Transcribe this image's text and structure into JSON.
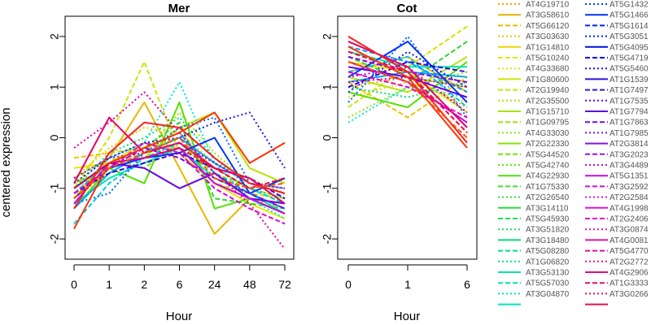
{
  "chart_data": [
    {
      "type": "line",
      "title": "Mer",
      "xlabel": "Hour",
      "ylabel": "centered expression",
      "categories": [
        "0",
        "1",
        "2",
        "6",
        "24",
        "48",
        "72"
      ],
      "ylim": [
        -2.4,
        2.4
      ],
      "yticks": [
        "-2",
        "-1",
        "0",
        "1",
        "2"
      ],
      "grid": false,
      "series": [
        {
          "color": "#E6A800",
          "dash": "dot",
          "values": [
            -1.0,
            -0.5,
            -0.3,
            -0.2,
            -0.9,
            -1.2,
            -1.4
          ]
        },
        {
          "color": "#E6B800",
          "dash": "solid",
          "values": [
            -1.2,
            -0.4,
            0.7,
            -0.6,
            -1.9,
            -1.2,
            -1.5
          ]
        },
        {
          "color": "#EBC300",
          "dash": "dash",
          "values": [
            -0.4,
            -0.3,
            -0.2,
            0.0,
            -0.6,
            -1.0,
            -1.2
          ]
        },
        {
          "color": "#F0D000",
          "dash": "dot",
          "values": [
            -0.8,
            -0.2,
            0.2,
            0.1,
            -0.5,
            -0.8,
            -1.1
          ]
        },
        {
          "color": "#E6E600",
          "dash": "solid",
          "values": [
            -0.6,
            -0.5,
            -0.1,
            -0.3,
            -0.9,
            -1.3,
            -1.6
          ]
        },
        {
          "color": "#CCE600",
          "dash": "dash",
          "values": [
            -1.0,
            0.0,
            1.5,
            -0.3,
            -0.9,
            -1.1,
            -1.2
          ]
        },
        {
          "color": "#B3E600",
          "dash": "solid",
          "values": [
            -0.9,
            -0.6,
            -0.4,
            0.2,
            0.5,
            -0.6,
            -0.9
          ]
        },
        {
          "color": "#99E600",
          "dash": "dot",
          "values": [
            -1.2,
            -0.7,
            -0.3,
            0.5,
            -0.3,
            -0.9,
            -1.0
          ]
        },
        {
          "color": "#80E600",
          "dash": "dash",
          "values": [
            -0.8,
            -0.4,
            -0.6,
            -0.1,
            -0.7,
            -1.0,
            -1.3
          ]
        },
        {
          "color": "#55E000",
          "dash": "solid",
          "values": [
            -1.4,
            -0.6,
            -0.9,
            0.7,
            -1.4,
            -1.2,
            -1.5
          ]
        },
        {
          "color": "#2ED62E",
          "dash": "dash",
          "values": [
            -1.1,
            -0.5,
            -0.2,
            0.3,
            -1.2,
            -1.3,
            -1.4
          ]
        },
        {
          "color": "#00E070",
          "dash": "dot",
          "values": [
            -1.0,
            -0.3,
            0.0,
            0.4,
            -0.4,
            -1.0,
            -1.2
          ]
        },
        {
          "color": "#00E6AA",
          "dash": "solid",
          "values": [
            -1.3,
            -0.8,
            -0.5,
            -0.2,
            -0.8,
            -1.1,
            -1.5
          ]
        },
        {
          "color": "#00E6E6",
          "dash": "dot",
          "values": [
            -1.1,
            -0.4,
            -0.1,
            1.1,
            -0.5,
            -1.2,
            -1.6
          ]
        },
        {
          "color": "#00C8E6",
          "dash": "dash",
          "values": [
            -1.7,
            -0.9,
            -0.4,
            -0.1,
            -0.6,
            -1.0,
            -1.3
          ]
        },
        {
          "color": "#00AAF0",
          "dash": "solid",
          "values": [
            -1.4,
            -0.7,
            -0.3,
            0.0,
            -0.5,
            -0.9,
            -1.1
          ]
        },
        {
          "color": "#0099FF",
          "dash": "dash",
          "values": [
            -1.0,
            -0.5,
            -0.2,
            0.1,
            -0.7,
            -1.1,
            -1.4
          ]
        },
        {
          "color": "#0066FF",
          "dash": "dot",
          "values": [
            -1.3,
            -1.1,
            -0.3,
            0.2,
            0.4,
            -0.9,
            -1.0
          ]
        },
        {
          "color": "#0033FF",
          "dash": "solid",
          "values": [
            -1.2,
            -0.6,
            -0.4,
            -0.3,
            0.0,
            -1.1,
            -0.8
          ]
        },
        {
          "color": "#1A1AE6",
          "dash": "dot",
          "values": [
            -0.9,
            -0.4,
            -0.1,
            0.0,
            0.3,
            0.5,
            -0.6
          ]
        },
        {
          "color": "#3300E6",
          "dash": "dash",
          "values": [
            -1.1,
            -0.7,
            -0.5,
            -0.3,
            -0.6,
            -0.8,
            -1.2
          ]
        },
        {
          "color": "#6600E6",
          "dash": "solid",
          "values": [
            -1.0,
            -0.5,
            -0.6,
            -1.0,
            -0.7,
            -1.2,
            -1.3
          ]
        },
        {
          "color": "#8800DD",
          "dash": "dash",
          "values": [
            -1.2,
            -0.6,
            -0.2,
            -0.4,
            -0.8,
            -1.1,
            -1.4
          ]
        },
        {
          "color": "#AA00E6",
          "dash": "dot",
          "values": [
            -0.8,
            -0.4,
            -0.3,
            -0.1,
            -0.5,
            -0.9,
            -1.0
          ]
        },
        {
          "color": "#CC00E6",
          "dash": "solid",
          "values": [
            -1.3,
            -0.5,
            -0.4,
            -0.2,
            -0.9,
            -1.2,
            -1.5
          ]
        },
        {
          "color": "#E600CC",
          "dash": "dash",
          "values": [
            -1.1,
            -0.6,
            -0.1,
            -0.3,
            -1.0,
            -1.4,
            -1.7
          ]
        },
        {
          "color": "#E60099",
          "dash": "dot",
          "values": [
            -0.2,
            0.3,
            0.9,
            0.1,
            -0.7,
            -1.3,
            -2.2
          ]
        },
        {
          "color": "#E60066",
          "dash": "solid",
          "values": [
            -0.9,
            0.4,
            -0.3,
            -0.1,
            -0.6,
            -0.8,
            -1.3
          ]
        },
        {
          "color": "#F00040",
          "dash": "dash",
          "values": [
            -1.0,
            -0.5,
            -0.4,
            -0.2,
            -0.6,
            -1.0,
            -0.8
          ]
        },
        {
          "color": "#FF2020",
          "dash": "solid",
          "values": [
            -1.4,
            -0.3,
            0.3,
            0.2,
            -0.4,
            -0.9,
            -1.1
          ]
        },
        {
          "color": "#FF3300",
          "dash": "solid",
          "values": [
            -1.8,
            -0.5,
            -0.2,
            0.1,
            0.5,
            -0.5,
            -0.1
          ]
        },
        {
          "color": "#FF5500",
          "dash": "dash",
          "values": [
            -1.2,
            -0.6,
            -0.3,
            0.0,
            -0.8,
            -1.0,
            -0.9
          ]
        }
      ]
    },
    {
      "type": "line",
      "title": "Cot",
      "xlabel": "Hour",
      "categories": [
        "0",
        "1",
        "6"
      ],
      "ylim": [
        -2.4,
        2.4
      ],
      "yticks": [
        "-2",
        "-1",
        "0",
        "1",
        "2"
      ],
      "grid": false,
      "series": [
        {
          "color": "#E6A800",
          "dash": "dot",
          "values": [
            1.0,
            1.2,
            0.6
          ]
        },
        {
          "color": "#E6B800",
          "dash": "solid",
          "values": [
            1.3,
            1.6,
            0.9
          ]
        },
        {
          "color": "#EBC300",
          "dash": "dash",
          "values": [
            1.1,
            0.4,
            1.2
          ]
        },
        {
          "color": "#F0D000",
          "dash": "dot",
          "values": [
            0.8,
            1.1,
            0.7
          ]
        },
        {
          "color": "#E6E600",
          "dash": "solid",
          "values": [
            1.5,
            1.3,
            0.5
          ]
        },
        {
          "color": "#CCE600",
          "dash": "dash",
          "values": [
            0.6,
            1.4,
            2.2
          ]
        },
        {
          "color": "#B3E600",
          "dash": "solid",
          "values": [
            1.2,
            0.9,
            1.6
          ]
        },
        {
          "color": "#99E600",
          "dash": "dot",
          "values": [
            0.4,
            1.0,
            1.3
          ]
        },
        {
          "color": "#80E600",
          "dash": "dash",
          "values": [
            1.4,
            1.2,
            1.0
          ]
        },
        {
          "color": "#55E000",
          "dash": "solid",
          "values": [
            0.9,
            0.6,
            1.5
          ]
        },
        {
          "color": "#2ED62E",
          "dash": "dash",
          "values": [
            1.6,
            1.1,
            1.9
          ]
        },
        {
          "color": "#00E070",
          "dash": "dot",
          "values": [
            1.0,
            0.8,
            1.1
          ]
        },
        {
          "color": "#00E6AA",
          "dash": "solid",
          "values": [
            1.7,
            1.4,
            1.4
          ]
        },
        {
          "color": "#00E6E6",
          "dash": "dot",
          "values": [
            0.3,
            1.0,
            0.8
          ]
        },
        {
          "color": "#00C8E6",
          "dash": "dash",
          "values": [
            1.3,
            1.6,
            0.6
          ]
        },
        {
          "color": "#00AAF0",
          "dash": "solid",
          "values": [
            1.1,
            1.3,
            1.2
          ]
        },
        {
          "color": "#0099FF",
          "dash": "dash",
          "values": [
            1.8,
            1.5,
            0.9
          ]
        },
        {
          "color": "#0066FF",
          "dash": "dot",
          "values": [
            0.7,
            2.0,
            0.4
          ]
        },
        {
          "color": "#0033FF",
          "dash": "solid",
          "values": [
            1.2,
            1.9,
            0.7
          ]
        },
        {
          "color": "#1A1AE6",
          "dash": "dot",
          "values": [
            0.9,
            1.7,
            1.0
          ]
        },
        {
          "color": "#3300E6",
          "dash": "dash",
          "values": [
            1.0,
            1.5,
            1.3
          ]
        },
        {
          "color": "#6600E6",
          "dash": "solid",
          "values": [
            1.4,
            1.2,
            0.8
          ]
        },
        {
          "color": "#8800DD",
          "dash": "dash",
          "values": [
            1.6,
            1.3,
            1.1
          ]
        },
        {
          "color": "#AA00E6",
          "dash": "dot",
          "values": [
            1.2,
            1.4,
            0.5
          ]
        },
        {
          "color": "#CC00E6",
          "dash": "solid",
          "values": [
            1.5,
            1.1,
            0.3
          ]
        },
        {
          "color": "#E600CC",
          "dash": "dash",
          "values": [
            1.3,
            1.0,
            0.4
          ]
        },
        {
          "color": "#E60099",
          "dash": "dot",
          "values": [
            1.1,
            1.2,
            1.0
          ]
        },
        {
          "color": "#E60066",
          "dash": "solid",
          "values": [
            1.9,
            1.4,
            0.2
          ]
        },
        {
          "color": "#F00040",
          "dash": "dash",
          "values": [
            1.7,
            1.3,
            0.1
          ]
        },
        {
          "color": "#FF2020",
          "dash": "solid",
          "values": [
            2.0,
            1.3,
            -0.1
          ]
        },
        {
          "color": "#FF3300",
          "dash": "solid",
          "values": [
            1.8,
            1.2,
            -0.2
          ]
        },
        {
          "color": "#FF5500",
          "dash": "dash",
          "values": [
            1.5,
            1.1,
            0.0
          ]
        }
      ]
    }
  ],
  "legend": {
    "placement": "right",
    "columns": [
      [
        {
          "label": "AT4G19710",
          "color": "#E6A800",
          "dash": "dot"
        },
        {
          "label": "AT3G58610",
          "color": "#E6B000",
          "dash": "solid"
        },
        {
          "label": "AT5G66120",
          "color": "#E6B800",
          "dash": "dash"
        },
        {
          "label": "AT3G03630",
          "color": "#EBC300",
          "dash": "dot"
        },
        {
          "label": "AT1G14810",
          "color": "#F0D000",
          "dash": "solid"
        },
        {
          "label": "AT5G10240",
          "color": "#E6E600",
          "dash": "dash"
        },
        {
          "label": "AT4G33680",
          "color": "#DCE600",
          "dash": "dot"
        },
        {
          "label": "AT1G80600",
          "color": "#CCE600",
          "dash": "solid"
        },
        {
          "label": "AT2G19940",
          "color": "#C0E600",
          "dash": "dash"
        },
        {
          "label": "AT2G35500",
          "color": "#B3E600",
          "dash": "dot"
        },
        {
          "label": "AT1G15710",
          "color": "#A6E600",
          "dash": "solid"
        },
        {
          "label": "AT1G09795",
          "color": "#99E600",
          "dash": "dash"
        },
        {
          "label": "AT4G33030",
          "color": "#8CE600",
          "dash": "dot"
        },
        {
          "label": "AT2G22330",
          "color": "#80E600",
          "dash": "solid"
        },
        {
          "label": "AT5G44520",
          "color": "#70E600",
          "dash": "dash"
        },
        {
          "label": "AT5G42740",
          "color": "#60E600",
          "dash": "dot"
        },
        {
          "label": "AT4G22930",
          "color": "#50E010",
          "dash": "solid"
        },
        {
          "label": "AT1G75330",
          "color": "#40E020",
          "dash": "dash"
        },
        {
          "label": "AT2G26540",
          "color": "#33E033",
          "dash": "dot"
        },
        {
          "label": "AT3G14110",
          "color": "#26E040",
          "dash": "solid"
        },
        {
          "label": "AT5G45930",
          "color": "#1AE050",
          "dash": "dash"
        },
        {
          "label": "AT3G51820",
          "color": "#10E060",
          "dash": "dot"
        },
        {
          "label": "AT3G18480",
          "color": "#00E070",
          "dash": "solid"
        },
        {
          "label": "AT5G08280",
          "color": "#00E080",
          "dash": "dash"
        },
        {
          "label": "AT1G06820",
          "color": "#00E090",
          "dash": "dot"
        },
        {
          "label": "AT3G53130",
          "color": "#00E6A0",
          "dash": "solid"
        },
        {
          "label": "AT5G57030",
          "color": "#00E6AA",
          "dash": "dash"
        },
        {
          "label": "AT3G04870",
          "color": "#00E6B8",
          "dash": "dot"
        },
        {
          "label": "",
          "color": "#00E6C0",
          "dash": "solid"
        }
      ],
      [
        {
          "label": "AT5G1432",
          "color": "#0040FF",
          "dash": "dot"
        },
        {
          "label": "AT5G1466",
          "color": "#0033FF",
          "dash": "solid"
        },
        {
          "label": "AT5G1614",
          "color": "#0026F5",
          "dash": "dash"
        },
        {
          "label": "AT5G3051",
          "color": "#001AEB",
          "dash": "dot"
        },
        {
          "label": "AT5G4095",
          "color": "#0010E0",
          "dash": "solid"
        },
        {
          "label": "AT5G4719",
          "color": "#0A0AE0",
          "dash": "dash"
        },
        {
          "label": "AT5G5460",
          "color": "#1A10E0",
          "dash": "dot"
        },
        {
          "label": "AT1G1539",
          "color": "#2A10E0",
          "dash": "solid"
        },
        {
          "label": "AT1G7497",
          "color": "#3A10E0",
          "dash": "dash"
        },
        {
          "label": "AT1G7535",
          "color": "#4A10E0",
          "dash": "dot"
        },
        {
          "label": "AT1G7794",
          "color": "#5A10E0",
          "dash": "solid"
        },
        {
          "label": "AT1G7863",
          "color": "#6A10E0",
          "dash": "dash"
        },
        {
          "label": "AT1G7985",
          "color": "#7A10E0",
          "dash": "dot"
        },
        {
          "label": "AT2G3814",
          "color": "#8A10E0",
          "dash": "solid"
        },
        {
          "label": "AT3G2023",
          "color": "#9A10E0",
          "dash": "dash"
        },
        {
          "label": "AT3G4489",
          "color": "#AA10E0",
          "dash": "dot"
        },
        {
          "label": "AT5G1351",
          "color": "#B810E0",
          "dash": "solid"
        },
        {
          "label": "AT3G2592",
          "color": "#C610E0",
          "dash": "dash"
        },
        {
          "label": "AT2G2584",
          "color": "#D410E0",
          "dash": "dot"
        },
        {
          "label": "AT4G1998",
          "color": "#E010D8",
          "dash": "solid"
        },
        {
          "label": "AT2G2406",
          "color": "#E010C8",
          "dash": "dash"
        },
        {
          "label": "AT3G0874",
          "color": "#E010B8",
          "dash": "dot"
        },
        {
          "label": "AT4G0081",
          "color": "#E010A8",
          "dash": "solid"
        },
        {
          "label": "AT5G4770",
          "color": "#E01098",
          "dash": "dash"
        },
        {
          "label": "AT2G2772",
          "color": "#E01088",
          "dash": "dot"
        },
        {
          "label": "AT4G2906",
          "color": "#E01078",
          "dash": "solid"
        },
        {
          "label": "AT1G3333",
          "color": "#E01068",
          "dash": "dash"
        },
        {
          "label": "AT3G0266",
          "color": "#E01058",
          "dash": "dot"
        },
        {
          "label": "",
          "color": "#E01048",
          "dash": "solid"
        }
      ]
    ]
  }
}
